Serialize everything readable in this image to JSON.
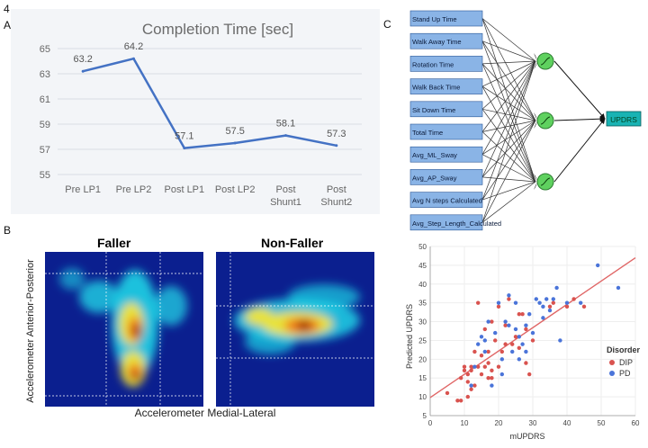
{
  "figure_number": "4",
  "panel_labels": {
    "a": "A",
    "b": "B",
    "c": "C"
  },
  "panel_b": {
    "left_title": "Faller",
    "right_title": "Non-Faller",
    "ylabel": "Accelerometer Anterior-Posterior",
    "xlabel": "Accelerometer Medial-Lateral",
    "colormap": [
      "#0b1f8f",
      "#1fd3e6",
      "#e8e23a",
      "#f07d1c",
      "#8b0000"
    ]
  },
  "panel_c": {
    "inputs": [
      "Stand Up Time",
      "Walk Away Time",
      "Rotation Time",
      "Walk Back Time",
      "Sit Down Time",
      "Total Time",
      "Avg_ML_Sway",
      "Avg_AP_Sway",
      "Avg N steps Calculated",
      "Avg_Step_Length_Calculated"
    ],
    "output": "UPDRS",
    "hidden_nodes": 3,
    "input_color": "#8ab4e6",
    "hidden_color": "#5fd15f",
    "output_color": "#19b3b3"
  },
  "chart_data": [
    {
      "type": "line",
      "title": "Completion Time [sec]",
      "categories": [
        "Pre LP1",
        "Pre LP2",
        "Post LP1",
        "Post LP2",
        "Post Shunt1",
        "Post Shunt2"
      ],
      "category_lines": [
        [
          "Pre LP1"
        ],
        [
          "Pre LP2"
        ],
        [
          "Post LP1"
        ],
        [
          "Post LP2"
        ],
        [
          "Post",
          "Shunt1"
        ],
        [
          "Post",
          "Shunt2"
        ]
      ],
      "values": [
        63.2,
        64.2,
        57.1,
        57.5,
        58.1,
        57.3
      ],
      "data_labels": [
        "63.2",
        "64.2",
        "57.1",
        "57.5",
        "58.1",
        "57.3"
      ],
      "ylim": [
        55,
        65
      ],
      "yticks": [
        55,
        57,
        59,
        61,
        63,
        65
      ],
      "grid": true,
      "color": "#4472c4"
    },
    {
      "type": "scatter",
      "xlabel": "mUPDRS",
      "ylabel": "Predicted UPDRS",
      "xlim": [
        0,
        60
      ],
      "ylim": [
        5,
        50
      ],
      "xticks": [
        0,
        10,
        20,
        30,
        40,
        50,
        60
      ],
      "yticks": [
        5,
        10,
        15,
        20,
        25,
        30,
        35,
        40,
        45,
        50
      ],
      "legend_title": "Disorder",
      "legend_position": "right",
      "fit_line": {
        "x": [
          0,
          60
        ],
        "y": [
          9.8,
          47
        ],
        "color": "#e06666"
      },
      "series": [
        {
          "name": "DIP",
          "color": "#d9534f",
          "points": [
            [
              5,
              11
            ],
            [
              8,
              9
            ],
            [
              9,
              9
            ],
            [
              9,
              15
            ],
            [
              10,
              17
            ],
            [
              10,
              18
            ],
            [
              11,
              10
            ],
            [
              11,
              14
            ],
            [
              11,
              16
            ],
            [
              12,
              12
            ],
            [
              12,
              17
            ],
            [
              12,
              18
            ],
            [
              13,
              13
            ],
            [
              13,
              22
            ],
            [
              14,
              18
            ],
            [
              14,
              35
            ],
            [
              15,
              16
            ],
            [
              15,
              21
            ],
            [
              16,
              18
            ],
            [
              16,
              28
            ],
            [
              17,
              15
            ],
            [
              17,
              19
            ],
            [
              17,
              22
            ],
            [
              18,
              15
            ],
            [
              18,
              17
            ],
            [
              18,
              30
            ],
            [
              19,
              25
            ],
            [
              20,
              18
            ],
            [
              20,
              34
            ],
            [
              21,
              22
            ],
            [
              22,
              24
            ],
            [
              22,
              29
            ],
            [
              23,
              36
            ],
            [
              24,
              24
            ],
            [
              25,
              26
            ],
            [
              26,
              23
            ],
            [
              26,
              32
            ],
            [
              27,
              32
            ],
            [
              28,
              19
            ],
            [
              28,
              28
            ],
            [
              29,
              16
            ],
            [
              30,
              25
            ],
            [
              35,
              34
            ],
            [
              36,
              35
            ],
            [
              40,
              34
            ],
            [
              42,
              36
            ],
            [
              45,
              34
            ]
          ]
        },
        {
          "name": "PD",
          "color": "#4a74d9",
          "points": [
            [
              12,
              13
            ],
            [
              13,
              18
            ],
            [
              14,
              24
            ],
            [
              15,
              26
            ],
            [
              16,
              22
            ],
            [
              16,
              25
            ],
            [
              17,
              30
            ],
            [
              18,
              13
            ],
            [
              19,
              27
            ],
            [
              20,
              35
            ],
            [
              21,
              16
            ],
            [
              21,
              20
            ],
            [
              22,
              30
            ],
            [
              23,
              29
            ],
            [
              23,
              37
            ],
            [
              24,
              22
            ],
            [
              25,
              28
            ],
            [
              25,
              35
            ],
            [
              26,
              20
            ],
            [
              26,
              26
            ],
            [
              27,
              24
            ],
            [
              28,
              22
            ],
            [
              28,
              29
            ],
            [
              29,
              32
            ],
            [
              30,
              27
            ],
            [
              31,
              36
            ],
            [
              32,
              35
            ],
            [
              33,
              31
            ],
            [
              33,
              34
            ],
            [
              34,
              36
            ],
            [
              35,
              33
            ],
            [
              36,
              36
            ],
            [
              37,
              39
            ],
            [
              38,
              25
            ],
            [
              40,
              35
            ],
            [
              44,
              35
            ],
            [
              49,
              45
            ],
            [
              55,
              39
            ]
          ]
        }
      ]
    }
  ]
}
